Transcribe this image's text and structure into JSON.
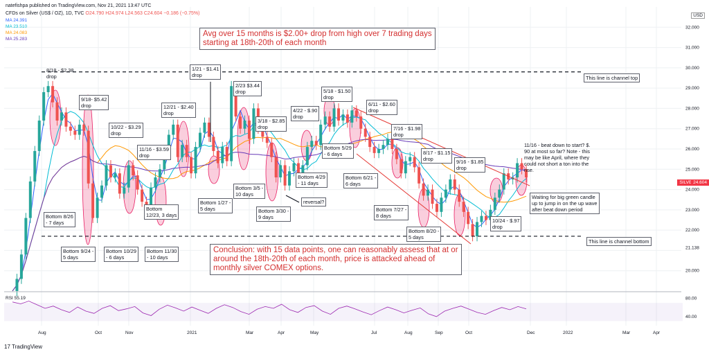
{
  "header": {
    "publisher": "natefishpa published on TradingView.com, Nov 21, 2021 13:47 UTC",
    "symbol": "CFDs on Silver (US$ / OZ), 1D, TVC",
    "ohlc": "O24.790 H24.974 L24.563 C24.604 −0.186 (−0.75%)",
    "ma_lines": [
      "MA 24.391",
      "MA 23.510",
      "MA 24.083",
      "MA 25.283"
    ],
    "currency": "USD",
    "price_tag_label": "SILVER",
    "price_tag_value": "24.604",
    "rsi_label": "RSI 55.19",
    "footer": "TradingView"
  },
  "colors": {
    "up": "#26a69a",
    "down": "#ef5350",
    "ma1": "#2962ff",
    "ma2": "#00bcd4",
    "ma3": "#ff9800",
    "ma4": "#673ab7",
    "ellipse": "#e91e63",
    "channel": "#e53935",
    "rsi": "#9c27b0"
  },
  "chart_data": {
    "type": "line",
    "ylim": [
      19,
      33
    ],
    "y_ticks": [
      "32.000",
      "31.000",
      "30.000",
      "29.000",
      "28.000",
      "27.000",
      "26.000",
      "25.000",
      "24.000",
      "23.000",
      "22.000",
      "21.138",
      "20.000"
    ],
    "x_ticks": [
      "Aug",
      "Oct",
      "Nov",
      "2021",
      "Mar",
      "Apr",
      "May",
      "Jul",
      "Aug",
      "Sep",
      "Oct",
      "Dec",
      "2022",
      "Mar",
      "Apr"
    ],
    "series": [
      {
        "values": [
          19.0,
          19.6,
          20.8,
          22.6,
          24.4,
          25.9,
          27.4,
          28.8,
          29.1,
          28.3,
          27.4,
          27.8,
          27.1,
          26.9,
          26.7,
          27.2,
          26.9,
          24.3,
          22.6,
          23.6,
          24.2,
          25.2,
          24.6,
          24.8,
          23.8,
          24.1,
          25.2,
          24.7,
          24.0,
          23.4,
          23.1,
          24.1,
          24.6,
          25.0,
          25.7,
          26.7,
          27.2,
          25.6,
          26.2,
          25.6,
          24.8,
          26.1,
          26.8,
          27.3,
          26.6,
          25.9,
          25.3,
          26.1,
          25.4,
          29.1,
          27.6,
          27.0,
          27.4,
          26.5,
          28.0,
          27.0,
          26.6,
          26.3,
          25.6,
          24.6,
          25.2,
          24.2,
          24.9,
          25.3,
          24.8,
          25.2,
          26.1,
          26.4,
          26.2,
          27.2,
          27.6,
          27.1,
          28.0,
          27.4,
          27.7,
          27.3,
          27.9,
          27.6,
          27.0,
          26.6,
          26.1,
          25.8,
          26.0,
          26.2,
          26.5,
          26.0,
          25.5,
          24.8,
          25.4,
          25.6,
          25.1,
          24.3,
          23.7,
          24.0,
          23.3,
          22.9,
          23.6,
          24.0,
          24.5,
          24.0,
          23.4,
          22.9,
          22.3,
          21.7,
          22.4,
          22.7,
          22.5,
          23.0,
          23.6,
          24.0,
          24.8,
          24.5,
          24.6,
          25.3,
          25.0,
          24.6
        ]
      }
    ],
    "horizontal_levels": [
      {
        "value": 29.8,
        "label": "This line is channel top"
      },
      {
        "value": 21.7,
        "label": "This line is channel bottom"
      }
    ],
    "rsi_ylim": [
      20,
      90
    ],
    "rsi_ticks": [
      "80.00",
      "40.00"
    ],
    "rsi_values": [
      72,
      68,
      74,
      66,
      58,
      63,
      55,
      49,
      61,
      52,
      47,
      58,
      64,
      53,
      57,
      62,
      48,
      42,
      56,
      65,
      59,
      52,
      61,
      54,
      47,
      58,
      66,
      60,
      51,
      45,
      56,
      62,
      58,
      67,
      55,
      49,
      60,
      64,
      52,
      45,
      58,
      63,
      57,
      50,
      44,
      53,
      61,
      55,
      48,
      54,
      59,
      46,
      40,
      52,
      58,
      63,
      56,
      49,
      45,
      53,
      60,
      55,
      62,
      57
    ]
  },
  "annotations": {
    "headline": "Avg over 15 months is $2.00+ drop from high over 7 trading days\nstarting at 18th-20th of each month",
    "conclusion": "Conclusion: with 15 data points, one can reasonably assess that at or\naround the 18th-20th of each month, price is attacked ahead of\nmonthly silver COMEX options.",
    "channel_top": "This line is channel top",
    "channel_bottom": "This line is channel bottom",
    "drops": [
      "8/18 - $2.38\ndrop",
      "9/18- $5.42\ndrop",
      "10/22 - $3.29\ndrop",
      "11/16 - $3.59\ndrop",
      "12/21 - $2.40\ndrop",
      "1/21 - $1.41\ndrop",
      "2/23 $3.44\ndrop",
      "3/18 - $2.85\ndrop",
      "4/22 - $.90\ndrop",
      "5/18 - $1.50\ndrop",
      "6/11 - $2.60\ndrop",
      "7/16 - $1.98\ndrop",
      "8/17 - $1.15\ndrop",
      "9/16 - $1.85\ndrop",
      "10/24 - $.97\ndrop"
    ],
    "bottoms": [
      "Bottom 8/26\n- 7 days",
      "Bottom 9/24 -\n5 days",
      "Bottom 10/29\n- 6 days",
      "Bottom 11/30\n- 10 days",
      "Bottom\n12/23, 3 days",
      "Bottom 1/27 -\n5 days",
      "Bottom 3/5 -\n10 days",
      "Bottom 3/30 -\n9 days",
      "Bottom 4/29\n- 11 days",
      "Bottom 5/29\n- 6 days",
      "Bottom 6/21 -\n6 days",
      "Bottom 7/27 -\n8 days",
      "Bottom 8/20 -\n5 days"
    ],
    "reversal": "reversal?",
    "note_1116": "11/16 - beat down to start? $.\n90 at most so far? Note - this\nmay be like April, where they\ncould not short a ton into the\nrise.",
    "note_waiting": "Waiting for big green candle\nup to jump in on the up wave\nafter beat down period"
  }
}
